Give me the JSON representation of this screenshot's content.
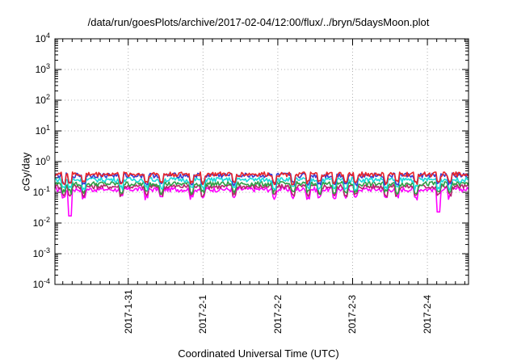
{
  "chart_data": {
    "type": "line",
    "title": "/data/run/goesPlots/archive/2017-02-04/12:00/flux/../bryn/5daysMoon.plot",
    "xlabel": "Coordinated Universal Time (UTC)",
    "ylabel": "cGy/day",
    "yscale": "log",
    "ylim": [
      0.0001,
      10000
    ],
    "ytick_labels": [
      {
        "base": "10",
        "exp": "4"
      },
      {
        "base": "10",
        "exp": "3"
      },
      {
        "base": "10",
        "exp": "2"
      },
      {
        "base": "10",
        "exp": "1"
      },
      {
        "base": "10",
        "exp": "0"
      },
      {
        "base": "10",
        "exp": "-1"
      },
      {
        "base": "10",
        "exp": "-2"
      },
      {
        "base": "10",
        "exp": "-3"
      },
      {
        "base": "10",
        "exp": "-4"
      }
    ],
    "xtick_labels": [
      "2017-1-31",
      "2017-2-1",
      "2017-2-2",
      "2017-2-3",
      "2017-2-4"
    ],
    "xlim_days": [
      -0.98,
      4.55
    ],
    "xticks_days": [
      0,
      1,
      2,
      3,
      4
    ],
    "grid": true,
    "series": [
      {
        "color": "#e8252a",
        "level": 0.39
      },
      {
        "color": "#3a3acf",
        "level": 0.36
      },
      {
        "color": "#1bd9d9",
        "level": 0.26
      },
      {
        "color": "#2f9e44",
        "level": 0.19
      },
      {
        "color": "#b5266e",
        "level": 0.155
      },
      {
        "color": "#ff00ff",
        "level": 0.125
      }
    ],
    "dip_days": [
      -0.86,
      -0.78,
      -0.6,
      -0.1,
      0.25,
      0.45,
      0.85,
      1.0,
      1.42,
      1.95,
      2.2,
      2.4,
      2.55,
      2.75,
      2.9,
      3.05,
      3.45,
      3.6,
      3.85,
      4.15,
      4.3
    ],
    "deep_dips": [
      {
        "day": -0.78,
        "value": 0.017
      },
      {
        "day": 4.15,
        "value": 0.023
      },
      {
        "day": -0.6,
        "value": 0.07
      }
    ]
  }
}
